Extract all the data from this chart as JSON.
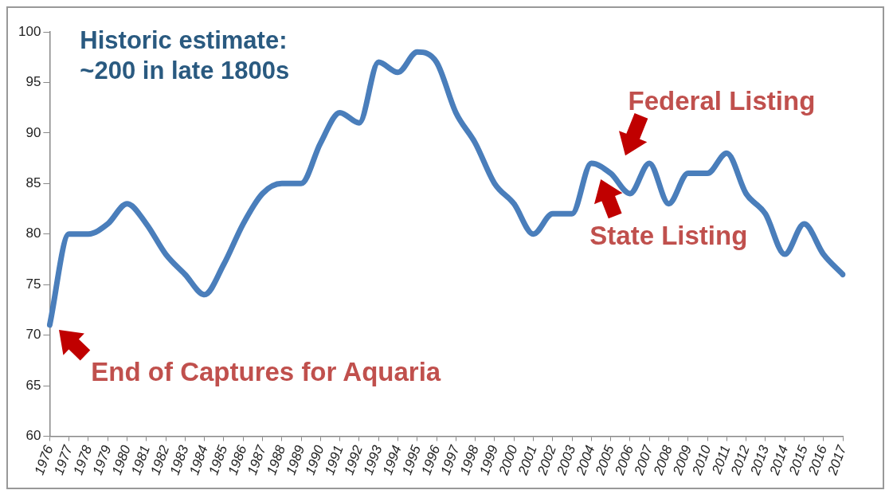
{
  "chart_data": {
    "type": "line",
    "categories": [
      "1976",
      "1977",
      "1978",
      "1979",
      "1980",
      "1981",
      "1982",
      "1983",
      "1984",
      "1985",
      "1986",
      "1987",
      "1988",
      "1989",
      "1990",
      "1991",
      "1992",
      "1993",
      "1994",
      "1995",
      "1996",
      "1997",
      "1998",
      "1999",
      "2000",
      "2001",
      "2002",
      "2003",
      "2004",
      "2005",
      "2006",
      "2007",
      "2008",
      "2009",
      "2010",
      "2011",
      "2012",
      "2013",
      "2014",
      "2015",
      "2016",
      "2017"
    ],
    "series": [
      {
        "color": "#4a7ebb",
        "values": [
          71,
          80,
          80,
          81,
          83,
          81,
          78,
          76,
          74,
          77,
          81,
          84,
          85,
          85,
          89,
          92,
          91,
          97,
          96,
          98,
          97,
          92,
          89,
          85,
          83,
          80,
          82,
          82,
          87,
          86,
          84,
          87,
          83,
          86,
          86,
          88,
          84,
          82,
          78,
          81,
          78,
          76
        ]
      }
    ],
    "ylim": [
      60,
      100
    ],
    "yticks": [
      60,
      65,
      70,
      75,
      80,
      85,
      90,
      95,
      100
    ],
    "grid": false,
    "legend": false,
    "marker": "none",
    "line_style": "solid",
    "annotations": [
      "Historic estimate: ~200 in late 1800s",
      {
        "text": "Federal Listing",
        "x": "2005",
        "y": 86
      },
      {
        "text": "State Listing",
        "x": "2004",
        "y": 87
      },
      {
        "text": "End of Captures for Aquaria",
        "x": "1976",
        "y": 71
      }
    ]
  }
}
